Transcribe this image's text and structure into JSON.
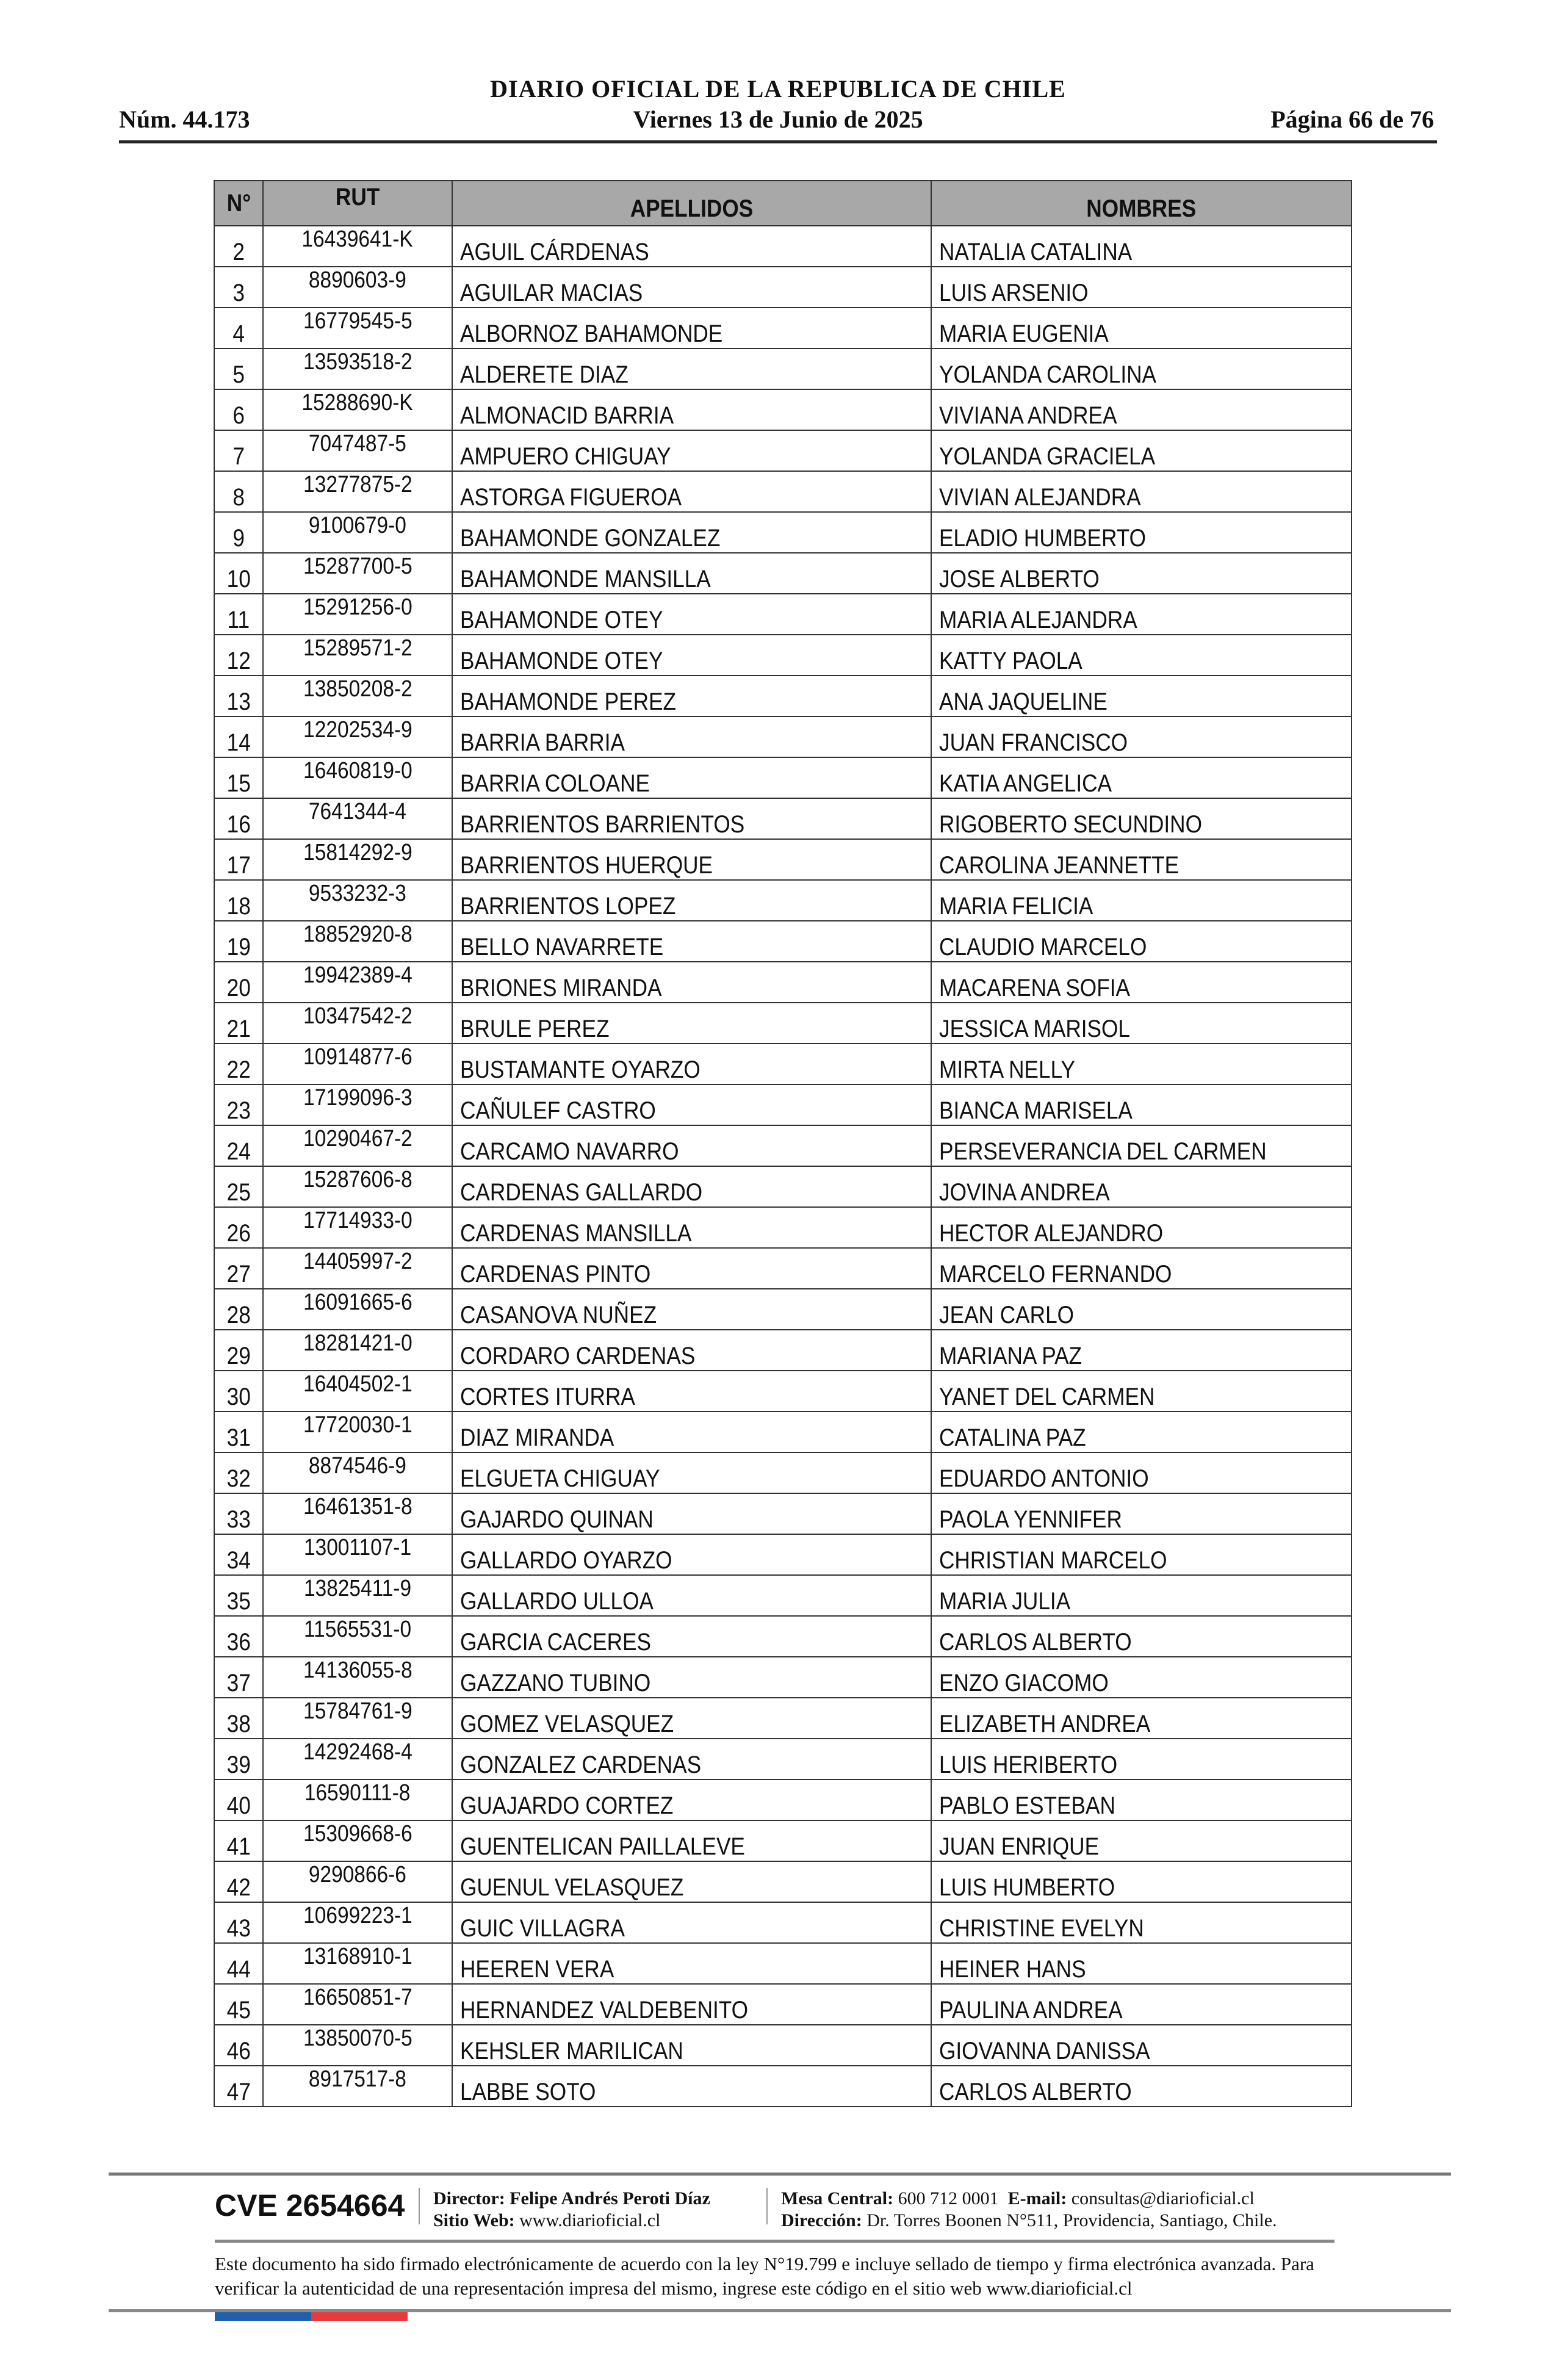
{
  "header": {
    "title": "DIARIO OFICIAL DE LA REPUBLICA DE CHILE",
    "number": "Núm. 44.173",
    "date": "Viernes 13 de Junio de 2025",
    "page": "Página 66 de 76"
  },
  "table": {
    "columns": [
      "N°",
      "RUT",
      "APELLIDOS",
      "NOMBRES"
    ],
    "rows": [
      [
        "2",
        "16439641-K",
        "AGUIL CÁRDENAS",
        "NATALIA CATALINA"
      ],
      [
        "3",
        "8890603-9",
        "AGUILAR MACIAS",
        "LUIS ARSENIO"
      ],
      [
        "4",
        "16779545-5",
        "ALBORNOZ BAHAMONDE",
        "MARIA EUGENIA"
      ],
      [
        "5",
        "13593518-2",
        "ALDERETE DIAZ",
        "YOLANDA CAROLINA"
      ],
      [
        "6",
        "15288690-K",
        "ALMONACID BARRIA",
        "VIVIANA ANDREA"
      ],
      [
        "7",
        "7047487-5",
        "AMPUERO CHIGUAY",
        "YOLANDA GRACIELA"
      ],
      [
        "8",
        "13277875-2",
        "ASTORGA FIGUEROA",
        "VIVIAN ALEJANDRA"
      ],
      [
        "9",
        "9100679-0",
        "BAHAMONDE GONZALEZ",
        "ELADIO HUMBERTO"
      ],
      [
        "10",
        "15287700-5",
        "BAHAMONDE MANSILLA",
        "JOSE ALBERTO"
      ],
      [
        "11",
        "15291256-0",
        "BAHAMONDE OTEY",
        "MARIA ALEJANDRA"
      ],
      [
        "12",
        "15289571-2",
        "BAHAMONDE OTEY",
        "KATTY PAOLA"
      ],
      [
        "13",
        "13850208-2",
        "BAHAMONDE PEREZ",
        "ANA JAQUELINE"
      ],
      [
        "14",
        "12202534-9",
        "BARRIA BARRIA",
        "JUAN FRANCISCO"
      ],
      [
        "15",
        "16460819-0",
        "BARRIA COLOANE",
        "KATIA ANGELICA"
      ],
      [
        "16",
        "7641344-4",
        "BARRIENTOS BARRIENTOS",
        "RIGOBERTO SECUNDINO"
      ],
      [
        "17",
        "15814292-9",
        "BARRIENTOS HUERQUE",
        "CAROLINA JEANNETTE"
      ],
      [
        "18",
        "9533232-3",
        "BARRIENTOS LOPEZ",
        "MARIA FELICIA"
      ],
      [
        "19",
        "18852920-8",
        "BELLO NAVARRETE",
        "CLAUDIO MARCELO"
      ],
      [
        "20",
        "19942389-4",
        "BRIONES MIRANDA",
        "MACARENA SOFIA"
      ],
      [
        "21",
        "10347542-2",
        "BRULE PEREZ",
        "JESSICA MARISOL"
      ],
      [
        "22",
        "10914877-6",
        "BUSTAMANTE OYARZO",
        "MIRTA NELLY"
      ],
      [
        "23",
        "17199096-3",
        "CAÑULEF CASTRO",
        "BIANCA MARISELA"
      ],
      [
        "24",
        "10290467-2",
        "CARCAMO NAVARRO",
        "PERSEVERANCIA DEL CARMEN"
      ],
      [
        "25",
        "15287606-8",
        "CARDENAS GALLARDO",
        "JOVINA ANDREA"
      ],
      [
        "26",
        "17714933-0",
        "CARDENAS MANSILLA",
        "HECTOR ALEJANDRO"
      ],
      [
        "27",
        "14405997-2",
        "CARDENAS PINTO",
        "MARCELO FERNANDO"
      ],
      [
        "28",
        "16091665-6",
        "CASANOVA NUÑEZ",
        "JEAN CARLO"
      ],
      [
        "29",
        "18281421-0",
        "CORDARO CARDENAS",
        "MARIANA PAZ"
      ],
      [
        "30",
        "16404502-1",
        "CORTES ITURRA",
        "YANET DEL CARMEN"
      ],
      [
        "31",
        "17720030-1",
        "DIAZ MIRANDA",
        "CATALINA PAZ"
      ],
      [
        "32",
        "8874546-9",
        "ELGUETA CHIGUAY",
        "EDUARDO ANTONIO"
      ],
      [
        "33",
        "16461351-8",
        "GAJARDO QUINAN",
        "PAOLA YENNIFER"
      ],
      [
        "34",
        "13001107-1",
        "GALLARDO OYARZO",
        "CHRISTIAN MARCELO"
      ],
      [
        "35",
        "13825411-9",
        "GALLARDO ULLOA",
        "MARIA JULIA"
      ],
      [
        "36",
        "11565531-0",
        "GARCIA CACERES",
        "CARLOS ALBERTO"
      ],
      [
        "37",
        "14136055-8",
        "GAZZANO TUBINO",
        "ENZO GIACOMO"
      ],
      [
        "38",
        "15784761-9",
        "GOMEZ VELASQUEZ",
        "ELIZABETH ANDREA"
      ],
      [
        "39",
        "14292468-4",
        "GONZALEZ CARDENAS",
        "LUIS HERIBERTO"
      ],
      [
        "40",
        "16590111-8",
        "GUAJARDO CORTEZ",
        "PABLO ESTEBAN"
      ],
      [
        "41",
        "15309668-6",
        "GUENTELICAN PAILLALEVE",
        "JUAN ENRIQUE"
      ],
      [
        "42",
        "9290866-6",
        "GUENUL VELASQUEZ",
        "LUIS HUMBERTO"
      ],
      [
        "43",
        "10699223-1",
        "GUIC VILLAGRA",
        "CHRISTINE EVELYN"
      ],
      [
        "44",
        "13168910-1",
        "HEEREN VERA",
        "HEINER HANS"
      ],
      [
        "45",
        "16650851-7",
        "HERNANDEZ VALDEBENITO",
        "PAULINA ANDREA"
      ],
      [
        "46",
        "13850070-5",
        "KEHSLER MARILICAN",
        "GIOVANNA DANISSA"
      ],
      [
        "47",
        "8917517-8",
        "LABBE SOTO",
        "CARLOS ALBERTO"
      ]
    ]
  },
  "footer": {
    "cve": "CVE 2654664",
    "director_label": "Director:",
    "director": "Felipe Andrés Peroti Díaz",
    "web_label": "Sitio Web:",
    "web": "www.diarioficial.cl",
    "phone_label": "Mesa Central:",
    "phone": "600 712 0001",
    "email_label": "E-mail:",
    "email": "consultas@diarioficial.cl",
    "address_label": "Dirección:",
    "address": "Dr. Torres Boonen N°511, Providencia, Santiago, Chile.",
    "disclaimer": "Este documento ha sido firmado electrónicamente de acuerdo con la ley N°19.799 e incluye sellado de tiempo y firma electrónica avanzada. Para verificar la autenticidad de una representación impresa del mismo, ingrese este código en el sitio web www.diarioficial.cl",
    "flag_colors": [
      "#1f5fae",
      "#e8393f"
    ]
  }
}
